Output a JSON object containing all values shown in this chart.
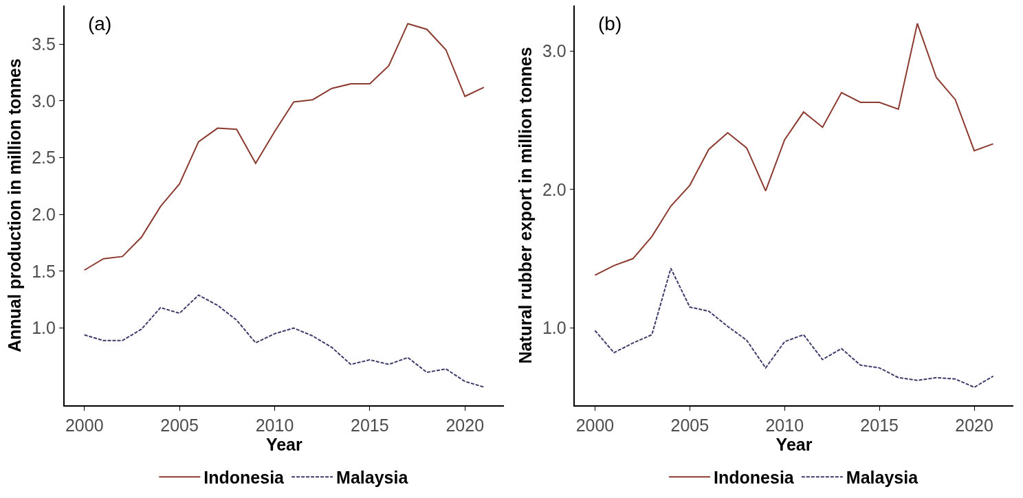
{
  "chart_data": [
    {
      "type": "line",
      "annotations": [
        "(a)"
      ],
      "xlabel": "Year",
      "ylabel": "Annual production in million tonnes",
      "legend": "bottom",
      "grid": false,
      "x": [
        2000,
        2001,
        2002,
        2003,
        2004,
        2005,
        2006,
        2007,
        2008,
        2009,
        2010,
        2011,
        2012,
        2013,
        2014,
        2015,
        2016,
        2017,
        2018,
        2019,
        2020,
        2021
      ],
      "series": [
        {
          "name": "Indonesia",
          "color": "#8b3a2f",
          "line_style": "solid",
          "values": [
            1.51,
            1.61,
            1.63,
            1.8,
            2.07,
            2.27,
            2.64,
            2.76,
            2.75,
            2.45,
            2.73,
            2.99,
            3.01,
            3.11,
            3.15,
            3.15,
            3.31,
            3.68,
            3.63,
            3.45,
            3.04,
            3.12
          ]
        },
        {
          "name": "Malaysia",
          "color": "#3b3b6b",
          "line_style": "dashed",
          "values": [
            0.94,
            0.89,
            0.89,
            0.99,
            1.18,
            1.13,
            1.29,
            1.2,
            1.07,
            0.87,
            0.95,
            1.0,
            0.93,
            0.83,
            0.68,
            0.72,
            0.68,
            0.74,
            0.61,
            0.64,
            0.53,
            0.48
          ]
        }
      ],
      "xlim": [
        1998.95,
        2022.05
      ],
      "ylim": [
        0.32,
        3.84
      ],
      "xticks": [
        2000,
        2005,
        2010,
        2015,
        2020
      ],
      "yticks": [
        {
          "value": 1.0,
          "label": "1.0"
        },
        {
          "value": 1.5,
          "label": "1.5"
        },
        {
          "value": 2.0,
          "label": "2.0"
        },
        {
          "value": 2.5,
          "label": "2.5"
        },
        {
          "value": 3.0,
          "label": "3.0"
        },
        {
          "value": 3.5,
          "label": "3.5"
        }
      ]
    },
    {
      "type": "line",
      "annotations": [
        "(b)"
      ],
      "xlabel": "Year",
      "ylabel": "Natural rubber export in million tonnes",
      "legend": "bottom",
      "grid": false,
      "x": [
        2000,
        2001,
        2002,
        2003,
        2004,
        2005,
        2006,
        2007,
        2008,
        2009,
        2010,
        2011,
        2012,
        2013,
        2014,
        2015,
        2016,
        2017,
        2018,
        2019,
        2020,
        2021
      ],
      "series": [
        {
          "name": "Indonesia",
          "color": "#8b3a2f",
          "line_style": "solid",
          "values": [
            1.38,
            1.45,
            1.5,
            1.66,
            1.88,
            2.03,
            2.29,
            2.41,
            2.3,
            1.99,
            2.36,
            2.56,
            2.45,
            2.7,
            2.63,
            2.63,
            2.58,
            3.2,
            2.81,
            2.65,
            2.28,
            2.33
          ]
        },
        {
          "name": "Malaysia",
          "color": "#3b3b6b",
          "line_style": "dashed",
          "values": [
            0.98,
            0.82,
            0.89,
            0.95,
            1.43,
            1.15,
            1.12,
            1.01,
            0.91,
            0.71,
            0.9,
            0.95,
            0.77,
            0.85,
            0.73,
            0.71,
            0.64,
            0.62,
            0.64,
            0.63,
            0.57,
            0.65
          ]
        }
      ],
      "xlim": [
        1998.95,
        2022.05
      ],
      "ylim": [
        0.44,
        3.33
      ],
      "xticks": [
        2000,
        2005,
        2010,
        2015,
        2020
      ],
      "yticks": [
        {
          "value": 1.0,
          "label": "1.0"
        },
        {
          "value": 2.0,
          "label": "2.0"
        },
        {
          "value": 3.0,
          "label": "3.0"
        }
      ]
    }
  ]
}
